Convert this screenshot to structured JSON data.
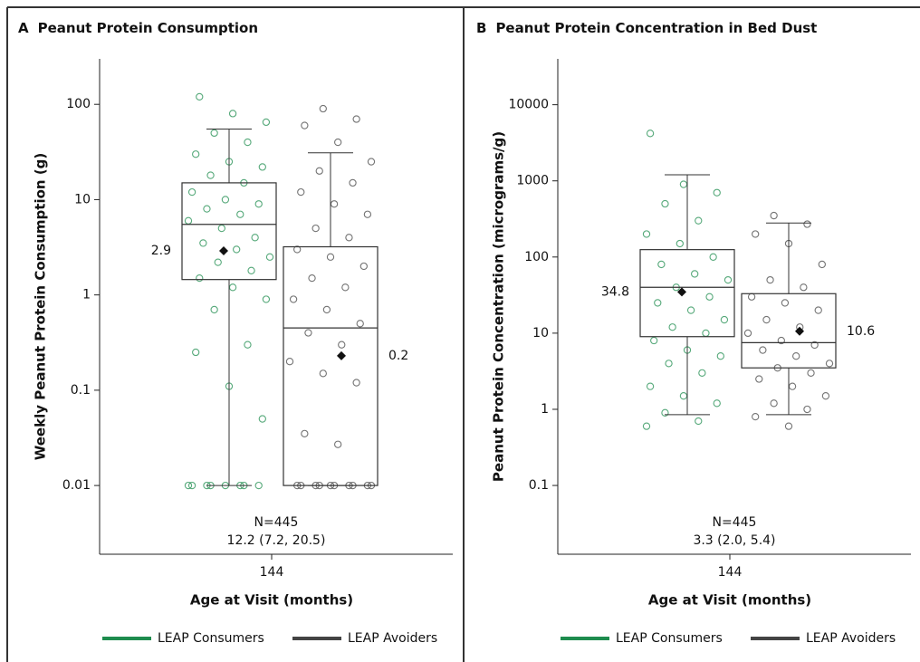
{
  "chart_data": [
    {
      "type": "box",
      "panel": "A",
      "title": "Peanut Protein Consumption",
      "ylabel": "Weekly Peanut Protein Consumption (g)",
      "xlabel": "Age at Visit (months)",
      "categories": [
        "144"
      ],
      "log": true,
      "ylim": [
        0.0019,
        300
      ],
      "yticks": [
        0.01,
        0.1,
        1,
        10,
        100
      ],
      "annotations": [
        "N=445",
        "12.2 (7.2, 20.5)"
      ],
      "series": [
        {
          "name": "LEAP Consumers",
          "color": "#1e8c4e",
          "whisker_low": 0.01,
          "q1": 1.45,
          "median": 5.5,
          "q3": 15,
          "whisker_high": 55,
          "mean": 2.9,
          "mean_label": "2.9",
          "points": [
            0.01,
            0.01,
            0.01,
            0.01,
            0.01,
            0.01,
            0.01,
            0.01,
            0.05,
            0.11,
            0.25,
            0.3,
            0.7,
            0.9,
            1.2,
            1.5,
            1.8,
            2.2,
            2.5,
            3,
            3.5,
            4,
            5,
            6,
            7,
            8,
            9,
            10,
            12,
            15,
            18,
            22,
            25,
            30,
            40,
            50,
            65,
            80,
            120
          ]
        },
        {
          "name": "LEAP Avoiders",
          "color": "#444444",
          "whisker_low": 0.01,
          "q1": 0.01,
          "median": 0.45,
          "q3": 3.2,
          "whisker_high": 31,
          "mean": 0.23,
          "mean_label": "0.2",
          "points": [
            0.01,
            0.01,
            0.01,
            0.01,
            0.01,
            0.01,
            0.01,
            0.01,
            0.01,
            0.01,
            0.027,
            0.035,
            0.12,
            0.15,
            0.2,
            0.3,
            0.4,
            0.5,
            0.7,
            0.9,
            1.2,
            1.5,
            2,
            2.5,
            3,
            4,
            5,
            7,
            9,
            12,
            15,
            20,
            25,
            40,
            60,
            70,
            90
          ]
        }
      ]
    },
    {
      "type": "box",
      "panel": "B",
      "title": "Peanut Protein Concentration in Bed Dust",
      "ylabel": "Peanut Protein Concentration (micrograms/g)",
      "xlabel": "Age at Visit (months)",
      "categories": [
        "144"
      ],
      "log": true,
      "ylim": [
        0.0125,
        40000
      ],
      "yticks": [
        0.1,
        1,
        10,
        100,
        1000,
        10000
      ],
      "annotations": [
        "N=445",
        "3.3 (2.0, 5.4)"
      ],
      "series": [
        {
          "name": "LEAP Consumers",
          "color": "#1e8c4e",
          "whisker_low": 0.85,
          "q1": 9,
          "median": 40,
          "q3": 125,
          "whisker_high": 1200,
          "mean": 34.8,
          "mean_label": "34.8",
          "points": [
            0.6,
            0.7,
            0.9,
            1.2,
            1.5,
            2,
            3,
            4,
            5,
            6,
            8,
            10,
            12,
            15,
            20,
            25,
            30,
            40,
            50,
            60,
            80,
            100,
            150,
            200,
            300,
            500,
            700,
            900,
            4200
          ]
        },
        {
          "name": "LEAP Avoiders",
          "color": "#444444",
          "whisker_low": 0.85,
          "q1": 3.5,
          "median": 7.5,
          "q3": 33,
          "whisker_high": 280,
          "mean": 10.6,
          "mean_label": "10.6",
          "points": [
            0.6,
            0.8,
            1,
            1.2,
            1.5,
            2,
            2.5,
            3,
            3.5,
            4,
            5,
            6,
            7,
            8,
            10,
            12,
            15,
            20,
            25,
            30,
            40,
            50,
            80,
            150,
            200,
            270,
            350
          ]
        }
      ]
    }
  ]
}
